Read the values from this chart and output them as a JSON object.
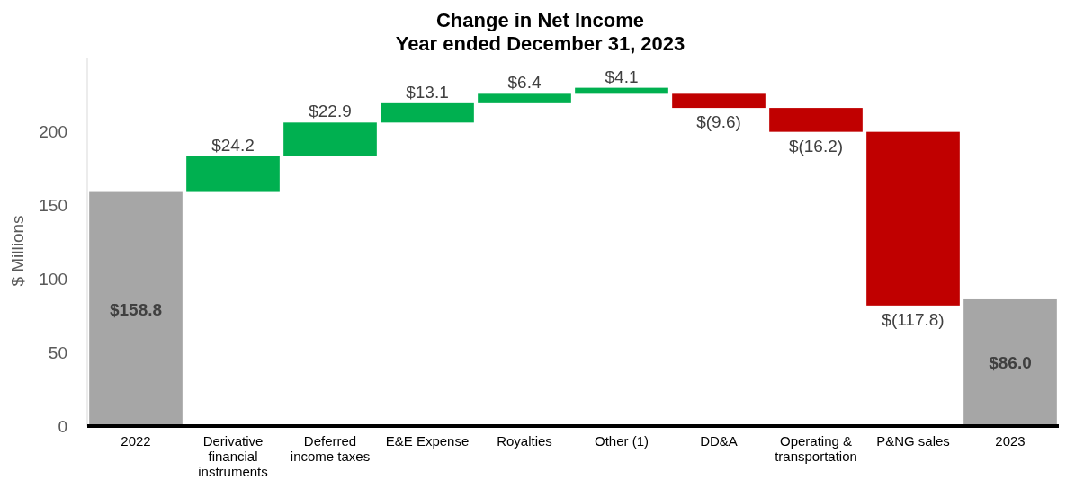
{
  "chart_data": {
    "type": "bar",
    "title": "Change in Net Income",
    "subtitle": "Year ended December 31, 2023",
    "ylabel": "$ Millions",
    "categories": [
      "2022",
      "Derivative financial instruments",
      "Deferred income taxes",
      "E&E Expense",
      "Royalties",
      "Other (1)",
      "DD&A",
      "Operating & transportation",
      "P&NG sales",
      "2023"
    ],
    "values": [
      158.8,
      24.2,
      22.9,
      13.1,
      6.4,
      4.1,
      -9.6,
      -16.2,
      -117.8,
      86.0
    ],
    "base": [
      0,
      158.8,
      183.0,
      205.9,
      219.0,
      225.4,
      225.4,
      215.8,
      199.6,
      0
    ],
    "colors": [
      "#a6a6a6",
      "#00b050",
      "#00b050",
      "#00b050",
      "#00b050",
      "#00b050",
      "#c00000",
      "#c00000",
      "#c00000",
      "#a6a6a6"
    ],
    "value_labels": [
      "$158.8",
      "$24.2",
      "$22.9",
      "$13.1",
      "$6.4",
      "$4.1",
      "$(9.6)",
      "$(16.2)",
      "$(117.8)",
      "$86.0"
    ],
    "ylim": [
      0,
      250
    ],
    "yticks": [
      0,
      50,
      100,
      150,
      200
    ],
    "grid": false
  }
}
